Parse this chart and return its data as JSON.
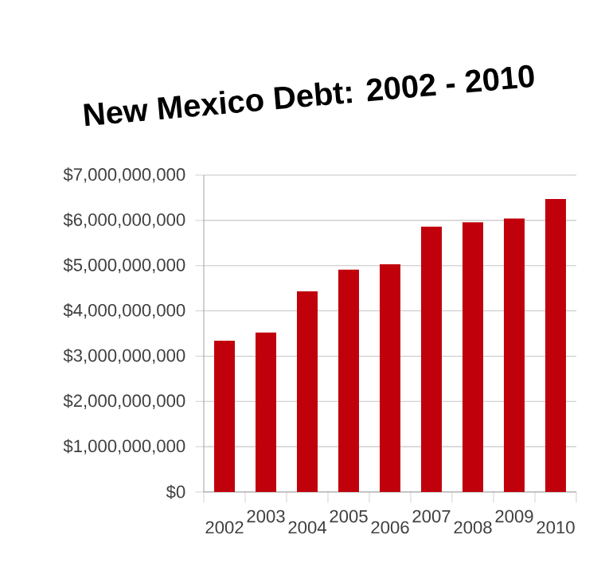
{
  "chart_data": {
    "type": "bar",
    "title": "New Mexico Debt: 2002 - 2010",
    "categories": [
      "2002",
      "2003",
      "2004",
      "2005",
      "2006",
      "2007",
      "2008",
      "2009",
      "2010"
    ],
    "values": [
      3340000000,
      3520000000,
      4430000000,
      4910000000,
      5030000000,
      5860000000,
      5960000000,
      6040000000,
      6470000000
    ],
    "color": "#c0000b",
    "ylim": [
      0,
      7000000000
    ],
    "yticks": [
      {
        "value": 0,
        "label": "$0"
      },
      {
        "value": 1000000000,
        "label": "$1,000,000,000"
      },
      {
        "value": 2000000000,
        "label": "$2,000,000,000"
      },
      {
        "value": 3000000000,
        "label": "$3,000,000,000"
      },
      {
        "value": 4000000000,
        "label": "$4,000,000,000"
      },
      {
        "value": 5000000000,
        "label": "$5,000,000,000"
      },
      {
        "value": 6000000000,
        "label": "$6,000,000,000"
      },
      {
        "value": 7000000000,
        "label": "$7,000,000,000"
      }
    ],
    "grid": "y"
  }
}
